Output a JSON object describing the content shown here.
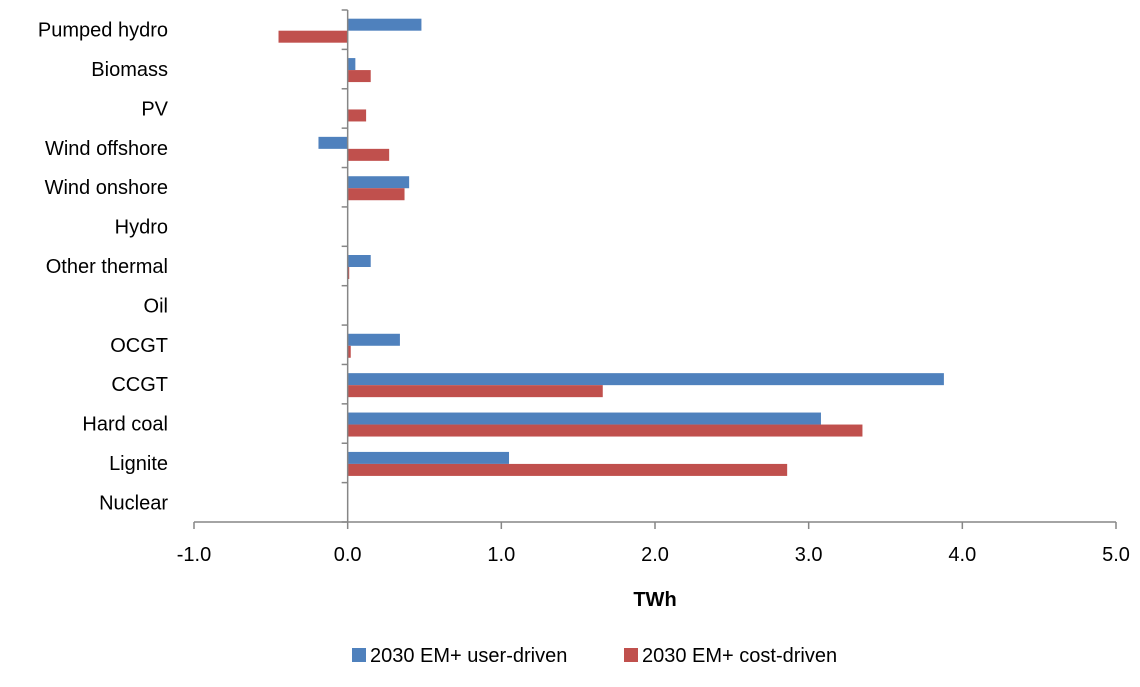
{
  "chart_data": {
    "type": "bar",
    "orientation": "horizontal",
    "categories": [
      "Pumped hydro",
      "Biomass",
      "PV",
      "Wind offshore",
      "Wind onshore",
      "Hydro",
      "Other thermal",
      "Oil",
      "OCGT",
      "CCGT",
      "Hard coal",
      "Lignite",
      "Nuclear"
    ],
    "series": [
      {
        "name": "2030 EM+ user-driven",
        "color": "#4f81bd",
        "values": [
          0.48,
          0.05,
          0.0,
          -0.19,
          0.4,
          0.0,
          0.15,
          0.0,
          0.34,
          3.88,
          3.08,
          1.05,
          0.0
        ]
      },
      {
        "name": "2030 EM+ cost-driven",
        "color": "#c0504d",
        "values": [
          -0.45,
          0.15,
          0.12,
          0.27,
          0.37,
          0.0,
          0.01,
          0.0,
          0.02,
          1.66,
          3.35,
          2.86,
          0.0
        ]
      }
    ],
    "xlabel": "TWh",
    "ylabel": "",
    "xlim": [
      -1.0,
      5.0
    ],
    "xticks": [
      "-1.0",
      "0.0",
      "1.0",
      "2.0",
      "3.0",
      "4.0",
      "5.0"
    ],
    "grid": false,
    "legend_position": "bottom"
  }
}
